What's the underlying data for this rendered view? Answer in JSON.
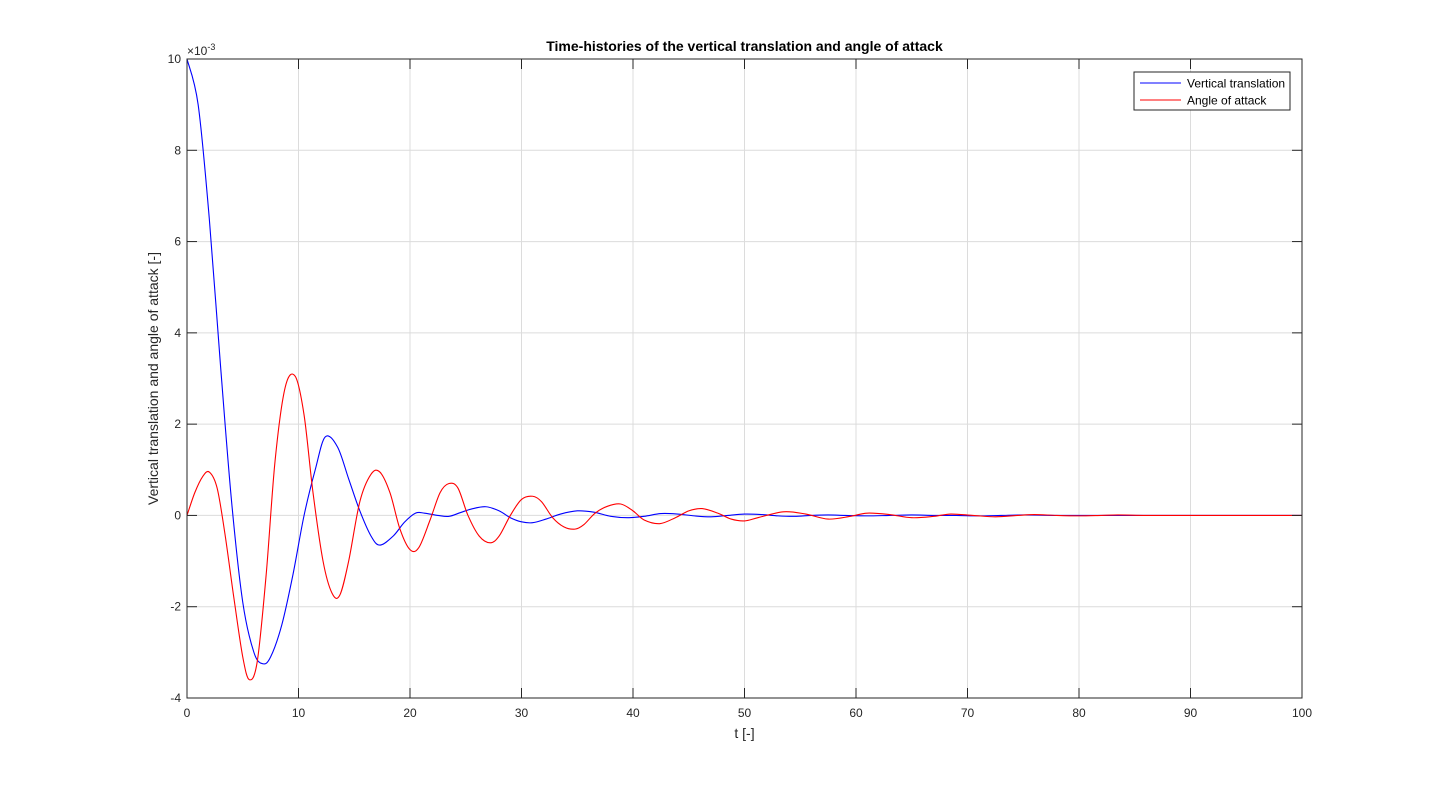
{
  "chart_data": {
    "type": "line",
    "title": "Time-histories of the vertical translation and angle of attack",
    "xlabel": "t [-]",
    "ylabel": "Vertical translation and angle of attack [-]",
    "xlim": [
      0,
      100
    ],
    "ylim": [
      -4,
      10
    ],
    "xticks": [
      0,
      10,
      20,
      30,
      40,
      50,
      60,
      70,
      80,
      90,
      100
    ],
    "yticks": [
      -4,
      -2,
      0,
      2,
      4,
      6,
      8,
      10
    ],
    "y_exponent": "×10",
    "y_exponent_power": "-3",
    "y_scale_factor": 0.001,
    "grid": true,
    "legend_position": "top-right",
    "series": [
      {
        "name": "Vertical translation",
        "color": "#0000ff",
        "x": [
          0,
          1,
          2,
          3,
          4,
          5,
          6,
          6.8,
          7.5,
          8.5,
          9.5,
          10.5,
          11.5,
          12.4,
          13.5,
          14.5,
          15.5,
          16.5,
          17.3,
          18.5,
          19.5,
          20.5,
          21.3,
          22.5,
          23.5,
          24.5,
          25.5,
          26.8,
          28,
          29,
          30,
          31,
          32.2,
          33.5,
          35,
          36.5,
          38,
          39.5,
          41,
          42.5,
          44,
          45.5,
          47,
          48.5,
          50,
          51.5,
          53,
          54.5,
          56,
          57.5,
          59,
          61,
          63,
          65,
          67,
          69,
          71,
          73,
          75,
          78,
          81,
          84,
          87,
          90,
          93,
          96,
          100
        ],
        "y": [
          10,
          9.0,
          6.5,
          3.3,
          0.3,
          -1.9,
          -3.0,
          -3.25,
          -3.1,
          -2.4,
          -1.3,
          0.0,
          1.0,
          1.72,
          1.5,
          0.8,
          0.1,
          -0.45,
          -0.65,
          -0.45,
          -0.15,
          0.05,
          0.05,
          0.0,
          -0.02,
          0.06,
          0.14,
          0.19,
          0.1,
          -0.05,
          -0.14,
          -0.16,
          -0.08,
          0.03,
          0.1,
          0.07,
          -0.02,
          -0.05,
          -0.02,
          0.04,
          0.03,
          -0.01,
          -0.03,
          0.0,
          0.03,
          0.02,
          -0.01,
          -0.02,
          0.0,
          0.01,
          0.0,
          -0.01,
          0.0,
          0.01,
          0.0,
          0.0,
          -0.01,
          0.0,
          0.01,
          0.0,
          0.0,
          0.0,
          0.0,
          0.0,
          0.0,
          0.0,
          0.0
        ]
      },
      {
        "name": "Angle of attack",
        "color": "#ff0000",
        "x": [
          0,
          0.7,
          1.4,
          2.0,
          2.7,
          3.4,
          4.2,
          5.0,
          5.6,
          6.3,
          7.1,
          7.9,
          8.8,
          9.7,
          10.5,
          11.3,
          12.2,
          13.0,
          13.7,
          14.5,
          15.5,
          16.5,
          17.3,
          18.2,
          19.1,
          20.0,
          20.8,
          21.8,
          22.7,
          23.5,
          24.3,
          25.2,
          26.2,
          27.2,
          28.0,
          29.0,
          30.0,
          31.0,
          31.8,
          32.8,
          33.8,
          34.8,
          35.6,
          36.6,
          37.7,
          38.9,
          40.0,
          41.0,
          42.4,
          43.8,
          45.0,
          46.2,
          47.6,
          48.8,
          50.0,
          51.2,
          53.5,
          55.5,
          57.5,
          59.5,
          61.0,
          63.0,
          65.0,
          67.0,
          68.5,
          70.5,
          72.5,
          74.5,
          76.0,
          78.0,
          80.0,
          82.0,
          83.5,
          86.0,
          88.5,
          91.0,
          93.5,
          96.0,
          100.0
        ],
        "y": [
          0,
          0.5,
          0.85,
          0.95,
          0.6,
          -0.4,
          -1.8,
          -3.1,
          -3.6,
          -3.2,
          -1.3,
          1.2,
          2.8,
          3.05,
          2.2,
          0.5,
          -1.0,
          -1.7,
          -1.75,
          -1.0,
          0.3,
          0.9,
          0.95,
          0.5,
          -0.3,
          -0.75,
          -0.7,
          -0.1,
          0.5,
          0.7,
          0.6,
          0.0,
          -0.45,
          -0.6,
          -0.45,
          0.0,
          0.35,
          0.42,
          0.3,
          -0.05,
          -0.25,
          -0.3,
          -0.2,
          0.05,
          0.2,
          0.25,
          0.1,
          -0.1,
          -0.18,
          -0.05,
          0.1,
          0.15,
          0.05,
          -0.08,
          -0.12,
          -0.05,
          0.08,
          0.03,
          -0.08,
          -0.02,
          0.05,
          0.02,
          -0.05,
          -0.02,
          0.03,
          0.0,
          -0.03,
          0.0,
          0.02,
          0.0,
          -0.01,
          0.0,
          0.01,
          0.0,
          0.0,
          0.0,
          0.0,
          0.0,
          0.0
        ]
      }
    ]
  }
}
